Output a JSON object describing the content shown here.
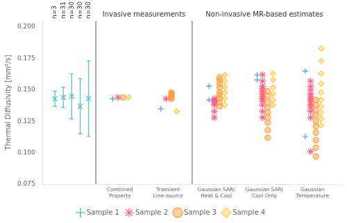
{
  "chart_data": {
    "type": "scatter",
    "ylabel": "Thermal Diffusivity [mm²/s]",
    "categories": [
      null,
      "Combined\nProperty",
      "Transient\nLine-source",
      "Gaussian SAR/\nHeat & Cool",
      "Gaussian SAR/\nCool Only",
      "Gaussian\nTemperature"
    ],
    "ylim": [
      0.075,
      0.205
    ],
    "yticks": [
      0.075,
      {
        "value": 0.1,
        "label": "0.100"
      },
      {
        "value": 0.125,
        "label": "0.125"
      },
      {
        "value": 0.15,
        "label": "0.150"
      },
      0.175,
      {
        "value": 0.2,
        "label": "0.200"
      }
    ],
    "grid": false,
    "legend": "bottom",
    "sections": [
      {
        "label": "Invasive measurements",
        "categories": [
          "Combined\nProperty",
          "Transient\nLine-source"
        ]
      },
      {
        "label": "Non-invasive MR-based estimates",
        "categories": [
          "Gaussian SAR/\nHeat & Cool",
          "Gaussian SAR/\nCool Only",
          "Gaussian\nTemperature"
        ]
      }
    ],
    "summary": {
      "marker": "x",
      "labels": [
        "n=3",
        "n=31",
        "n=30",
        "n=30",
        "n=30"
      ],
      "values": [
        0.143,
        0.144,
        0.145,
        0.137,
        0.143
      ],
      "errors": [
        0.006,
        0.008,
        0.018,
        0.022,
        0.03
      ]
    },
    "series": [
      {
        "name": "Sample 1",
        "marker": "+",
        "values": [
          [],
          [
            0.143
          ],
          [
            0.135
          ],
          [
            0.142,
            0.153
          ],
          [
            0.158,
            0.162
          ],
          [
            0.113,
            0.165
          ]
        ]
      },
      {
        "name": "Sample 2",
        "marker": "*",
        "values": [
          [],
          [
            0.144
          ],
          [
            0.143
          ],
          [
            0.128,
            0.133,
            0.138,
            0.14,
            0.141,
            0.142,
            0.143
          ],
          [
            0.128,
            0.133,
            0.138,
            0.141,
            0.143,
            0.145,
            0.147,
            0.149,
            0.151,
            0.153,
            0.157,
            0.162
          ],
          [
            0.101,
            0.128,
            0.133,
            0.136,
            0.138,
            0.14,
            0.142,
            0.143,
            0.145,
            0.147,
            0.15,
            0.153,
            0.157
          ]
        ]
      },
      {
        "name": "Sample 3",
        "marker": "o",
        "values": [
          [],
          [
            0.144
          ],
          [
            0.143,
            0.144,
            0.145,
            0.146,
            0.147,
            0.148
          ],
          [
            0.137,
            0.14,
            0.143,
            0.146,
            0.148,
            0.152,
            0.155,
            0.158,
            0.16
          ],
          [
            0.112,
            0.118,
            0.124,
            0.128,
            0.132,
            0.136,
            0.14,
            0.145,
            0.149
          ],
          [
            0.097,
            0.104,
            0.11,
            0.116,
            0.121,
            0.125,
            0.13,
            0.134,
            0.138,
            0.142
          ]
        ]
      },
      {
        "name": "Sample 4",
        "marker": "d",
        "values": [
          [],
          [
            0.144
          ],
          [
            0.133
          ],
          [
            0.138,
            0.143,
            0.148,
            0.152,
            0.157,
            0.162
          ],
          [
            0.138,
            0.142,
            0.147,
            0.152,
            0.158,
            0.163
          ],
          [
            0.122,
            0.127,
            0.132,
            0.137,
            0.142,
            0.148,
            0.155,
            0.163,
            0.173,
            0.183
          ]
        ]
      }
    ]
  }
}
